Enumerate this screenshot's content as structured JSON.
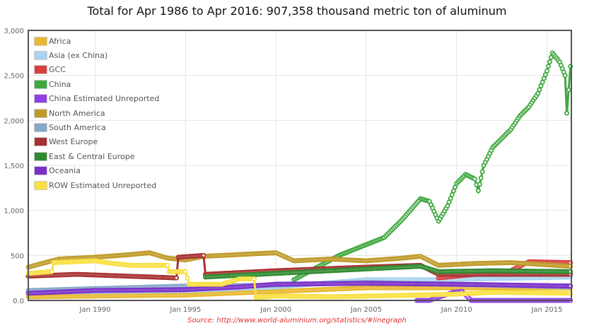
{
  "chart_data": {
    "type": "line",
    "title": "Total for Apr 1986 to Apr 2016: 907,358  thousand metric ton of aluminum",
    "source": "Source: http://www.world-aluminium.org/statistics/#linegraph",
    "xlabel": "",
    "ylabel": "",
    "xlim": [
      1986.3,
      2016.35
    ],
    "ylim": [
      0,
      3000
    ],
    "x_ticks": [
      {
        "v": 1990,
        "label": "Jan 1990"
      },
      {
        "v": 1995,
        "label": "Jan 1995"
      },
      {
        "v": 2000,
        "label": "Jan 2000"
      },
      {
        "v": 2005,
        "label": "Jan 2005"
      },
      {
        "v": 2010,
        "label": "Jan 2010"
      },
      {
        "v": 2015,
        "label": "Jan 2015"
      }
    ],
    "y_ticks": [
      {
        "v": 0,
        "label": "0.0"
      },
      {
        "v": 500,
        "label": "500"
      },
      {
        "v": 1000,
        "label": "1,000"
      },
      {
        "v": 1500,
        "label": "1,500"
      },
      {
        "v": 2000,
        "label": "2,000"
      },
      {
        "v": 2500,
        "label": "2,500"
      },
      {
        "v": 3000,
        "label": "3,000"
      }
    ],
    "grid": true,
    "legend_position": "top-left",
    "series": [
      {
        "name": "Africa",
        "color": "#e8b830",
        "points": [
          [
            1986.3,
            40
          ],
          [
            1995,
            60
          ],
          [
            2000,
            100
          ],
          [
            2005,
            140
          ],
          [
            2010,
            140
          ],
          [
            2016.3,
            140
          ]
        ]
      },
      {
        "name": "Asia (ex China)",
        "color": "#a8d4f0",
        "points": [
          [
            1986.3,
            90
          ],
          [
            1995,
            110
          ],
          [
            2000,
            150
          ],
          [
            2005,
            230
          ],
          [
            2009,
            230
          ],
          [
            2016.3,
            260
          ]
        ]
      },
      {
        "name": "GCC",
        "color": "#d84040",
        "points": [
          [
            2009,
            250
          ],
          [
            2011,
            290
          ],
          [
            2013,
            330
          ],
          [
            2014,
            430
          ],
          [
            2016.3,
            420
          ]
        ]
      },
      {
        "name": "China",
        "color": "#3fa83f",
        "points": [
          [
            2001,
            230
          ],
          [
            2003.5,
            500
          ],
          [
            2004,
            540
          ],
          [
            2005,
            620
          ],
          [
            2006,
            700
          ],
          [
            2007,
            900
          ],
          [
            2008,
            1130
          ],
          [
            2008.5,
            1100
          ],
          [
            2009,
            880
          ],
          [
            2009.5,
            1050
          ],
          [
            2010,
            1300
          ],
          [
            2010.5,
            1400
          ],
          [
            2011,
            1350
          ],
          [
            2011.2,
            1220
          ],
          [
            2011.5,
            1500
          ],
          [
            2012,
            1700
          ],
          [
            2012.5,
            1800
          ],
          [
            2013,
            1900
          ],
          [
            2013.5,
            2050
          ],
          [
            2014,
            2150
          ],
          [
            2014.5,
            2300
          ],
          [
            2015,
            2550
          ],
          [
            2015.3,
            2750
          ],
          [
            2015.7,
            2650
          ],
          [
            2016,
            2500
          ],
          [
            2016.1,
            2080
          ],
          [
            2016.3,
            2600
          ]
        ]
      },
      {
        "name": "China Estimated Unreported",
        "color": "#9040e8",
        "points": [
          [
            2007.8,
            0
          ],
          [
            2008.5,
            0
          ],
          [
            2009.8,
            90
          ],
          [
            2010.3,
            100
          ],
          [
            2010.8,
            0
          ],
          [
            2016.3,
            0
          ]
        ]
      },
      {
        "name": "North America",
        "color": "#c09a28",
        "points": [
          [
            1986.3,
            370
          ],
          [
            1988,
            460
          ],
          [
            1990,
            480
          ],
          [
            1992,
            510
          ],
          [
            1993,
            530
          ],
          [
            1994,
            470
          ],
          [
            1995,
            450
          ],
          [
            1996,
            490
          ],
          [
            1998,
            510
          ],
          [
            2000,
            530
          ],
          [
            2001,
            440
          ],
          [
            2003,
            460
          ],
          [
            2005,
            440
          ],
          [
            2007,
            470
          ],
          [
            2008,
            490
          ],
          [
            2009,
            390
          ],
          [
            2011,
            410
          ],
          [
            2013,
            420
          ],
          [
            2016.3,
            380
          ]
        ]
      },
      {
        "name": "South America",
        "color": "#88a8c8",
        "points": [
          [
            1986.3,
            110
          ],
          [
            1995,
            160
          ],
          [
            2000,
            170
          ],
          [
            2005,
            200
          ],
          [
            2016.3,
            150
          ]
        ]
      },
      {
        "name": "West Europe",
        "color": "#a83030",
        "points": [
          [
            1986.3,
            270
          ],
          [
            1989,
            290
          ],
          [
            1994.5,
            250
          ],
          [
            1994.6,
            480
          ],
          [
            1996,
            500
          ],
          [
            1996.1,
            290
          ],
          [
            2000,
            330
          ],
          [
            2005,
            370
          ],
          [
            2008,
            390
          ],
          [
            2009,
            290
          ],
          [
            2016.3,
            290
          ]
        ]
      },
      {
        "name": "East & Central Europe",
        "color": "#2e8a2e",
        "points": [
          [
            1996.1,
            260
          ],
          [
            2000,
            300
          ],
          [
            2005,
            350
          ],
          [
            2008,
            380
          ],
          [
            2009,
            320
          ],
          [
            2012,
            330
          ],
          [
            2016.3,
            320
          ]
        ]
      },
      {
        "name": "Oceania",
        "color": "#7a30c8",
        "points": [
          [
            1986.3,
            80
          ],
          [
            1990,
            110
          ],
          [
            1995,
            120
          ],
          [
            1998,
            150
          ],
          [
            2000,
            180
          ],
          [
            2005,
            190
          ],
          [
            2010,
            180
          ],
          [
            2016.3,
            160
          ]
        ]
      },
      {
        "name": "ROW Estimated Unreported",
        "color": "#f8e040",
        "points": [
          [
            1986.3,
            300
          ],
          [
            1987.6,
            320
          ],
          [
            1987.7,
            420
          ],
          [
            1990,
            440
          ],
          [
            1991,
            410
          ],
          [
            1992,
            390
          ],
          [
            1994,
            390
          ],
          [
            1994.1,
            320
          ],
          [
            1995,
            320
          ],
          [
            1995.2,
            180
          ],
          [
            1997,
            180
          ],
          [
            1998,
            240
          ],
          [
            1998.8,
            240
          ],
          [
            1998.9,
            30
          ],
          [
            2000,
            50
          ],
          [
            2003,
            40
          ],
          [
            2008,
            60
          ],
          [
            2010,
            70
          ],
          [
            2012,
            90
          ],
          [
            2016.3,
            80
          ]
        ]
      }
    ]
  }
}
